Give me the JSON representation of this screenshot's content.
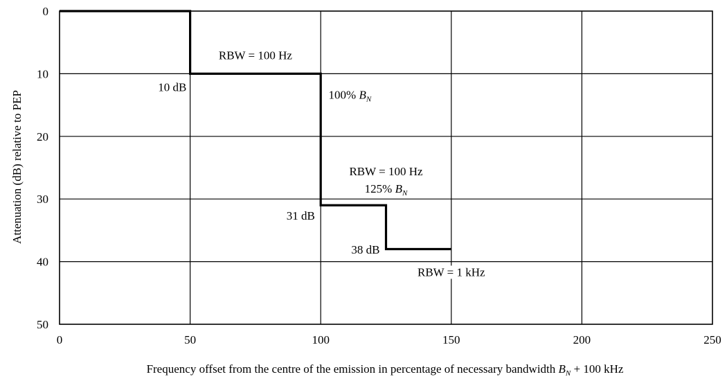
{
  "chart_data": {
    "type": "line",
    "title": "",
    "xlabel": {
      "prefix": "Frequency offset from the centre of the emission in percentage of necessary bandwidth ",
      "var": "B",
      "sub": "N",
      "suffix": " + 100 kHz"
    },
    "ylabel": "Attenuation (dB) relative to PEP",
    "xlim": [
      0,
      250
    ],
    "ylim": [
      0,
      50
    ],
    "y_inverted": true,
    "grid": true,
    "x_ticks": [
      0,
      50,
      100,
      150,
      200,
      250
    ],
    "y_ticks": [
      0,
      10,
      20,
      30,
      40,
      50
    ],
    "series": [
      {
        "color": "#000000",
        "x": [
          0,
          50,
          50,
          100,
          100,
          125,
          125,
          150
        ],
        "y": [
          0,
          0,
          10,
          10,
          31,
          31,
          38,
          38
        ]
      }
    ],
    "annotations": [
      {
        "id": "rbw1",
        "text": "RBW = 100 Hz",
        "x": 75,
        "y": 7.7,
        "anchor": "middle"
      },
      {
        "id": "db10",
        "text": "10 dB",
        "x": 48.6,
        "y": 12.8,
        "anchor": "end"
      },
      {
        "id": "bn100",
        "text": "100% ",
        "var": "B",
        "sub": "N",
        "x": 103,
        "y": 14.0,
        "anchor": "start"
      },
      {
        "id": "rbw2",
        "text": "RBW = 100 Hz",
        "x": 125,
        "y": 26.2,
        "anchor": "middle"
      },
      {
        "id": "bn125",
        "text": "125% ",
        "var": "B",
        "sub": "N",
        "x": 125,
        "y": 29.0,
        "anchor": "middle"
      },
      {
        "id": "db31",
        "text": "31 dB",
        "x": 97.8,
        "y": 33.3,
        "anchor": "end"
      },
      {
        "id": "db38",
        "text": "38 dB",
        "x": 122.6,
        "y": 38.7,
        "anchor": "end"
      },
      {
        "id": "rbw3",
        "text": "RBW = 1 kHz",
        "x": 150,
        "y": 42.3,
        "anchor": "middle"
      }
    ]
  }
}
